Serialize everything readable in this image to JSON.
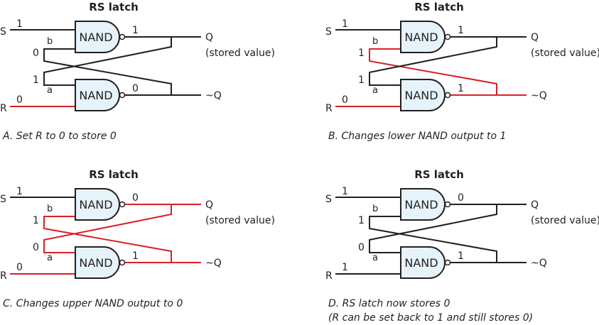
{
  "colors": {
    "black": "#231f20",
    "red": "#d92128",
    "gate_fill": "#e6f3fb"
  },
  "gate_label": "NAND",
  "panels": [
    {
      "id": "A",
      "title": "RS latch",
      "caption_lines": [
        "A. Set R to 0 to store 0"
      ],
      "inputs": {
        "S_label": "S",
        "R_label": "R",
        "S_value": "1",
        "R_value": "0"
      },
      "pins": {
        "upper_pin": "b",
        "lower_pin": "a"
      },
      "outputs": {
        "Q_label": "Q",
        "Q_note": "(stored value)",
        "NQ_label": "~Q"
      },
      "values": {
        "upper_out": "1",
        "lower_out": "0",
        "upper_feedback_in": "0",
        "lower_feedback_in": "1"
      },
      "wire_colors": {
        "S": "black",
        "R": "red",
        "upper_out": "black",
        "lower_out": "black",
        "feedback_to_upper": "black",
        "feedback_to_lower": "black"
      }
    },
    {
      "id": "B",
      "title": "RS latch",
      "caption_lines": [
        "B. Changes lower NAND output to 1"
      ],
      "inputs": {
        "S_label": "S",
        "R_label": "R",
        "S_value": "1",
        "R_value": "0"
      },
      "pins": {
        "upper_pin": "b",
        "lower_pin": "a"
      },
      "outputs": {
        "Q_label": "Q",
        "Q_note": "(stored value)",
        "NQ_label": "~Q"
      },
      "values": {
        "upper_out": "1",
        "lower_out": "1",
        "upper_feedback_in": "1",
        "lower_feedback_in": "1"
      },
      "wire_colors": {
        "S": "black",
        "R": "red",
        "upper_out": "black",
        "lower_out": "red",
        "feedback_to_upper": "red",
        "feedback_to_lower": "black"
      }
    },
    {
      "id": "C",
      "title": "RS latch",
      "caption_lines": [
        "C. Changes upper NAND output to 0"
      ],
      "inputs": {
        "S_label": "S",
        "R_label": "R",
        "S_value": "1",
        "R_value": "0"
      },
      "pins": {
        "upper_pin": "b",
        "lower_pin": "a"
      },
      "outputs": {
        "Q_label": "Q",
        "Q_note": "(stored value)",
        "NQ_label": "~Q"
      },
      "values": {
        "upper_out": "0",
        "lower_out": "1",
        "upper_feedback_in": "1",
        "lower_feedback_in": "0"
      },
      "wire_colors": {
        "S": "black",
        "R": "red",
        "upper_out": "red",
        "lower_out": "red",
        "feedback_to_upper": "red",
        "feedback_to_lower": "red"
      }
    },
    {
      "id": "D",
      "title": "RS latch",
      "caption_lines": [
        "D. RS latch now stores 0",
        "(R can be set back to 1 and still stores 0)"
      ],
      "inputs": {
        "S_label": "S",
        "R_label": "R",
        "S_value": "1",
        "R_value": "1"
      },
      "pins": {
        "upper_pin": "b",
        "lower_pin": "a"
      },
      "outputs": {
        "Q_label": "Q",
        "Q_note": "(stored value)",
        "NQ_label": "~Q"
      },
      "values": {
        "upper_out": "0",
        "lower_out": "1",
        "upper_feedback_in": "1",
        "lower_feedback_in": "0"
      },
      "wire_colors": {
        "S": "black",
        "R": "black",
        "upper_out": "black",
        "lower_out": "black",
        "feedback_to_upper": "black",
        "feedback_to_lower": "black"
      }
    }
  ]
}
